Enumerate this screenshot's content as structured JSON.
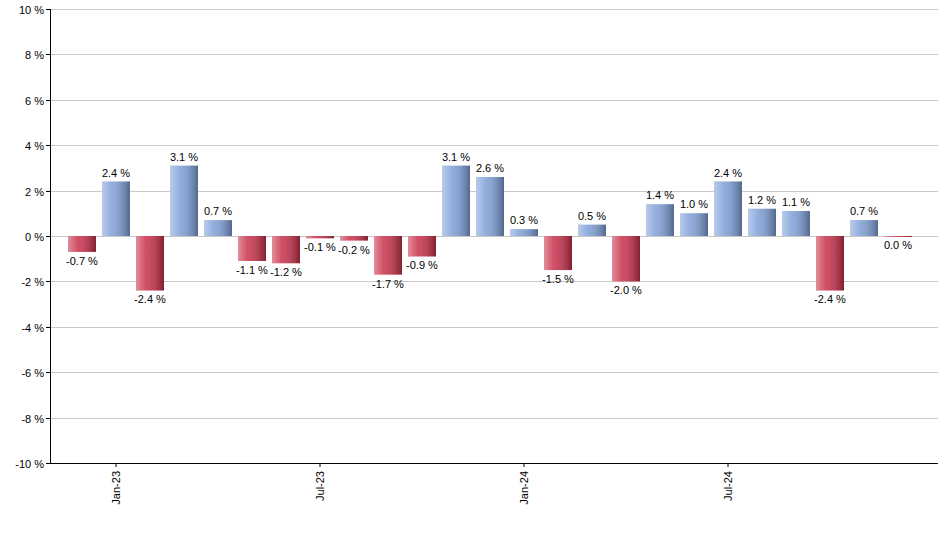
{
  "chart_data": {
    "type": "bar",
    "categories": [
      null,
      "Jan-23",
      null,
      null,
      null,
      null,
      null,
      "Jul-23",
      null,
      null,
      null,
      null,
      null,
      "Jan-24",
      null,
      null,
      null,
      null,
      null,
      "Jul-24",
      null,
      null,
      null,
      null,
      null
    ],
    "values": [
      -0.7,
      2.4,
      -2.4,
      3.1,
      0.7,
      -1.1,
      -1.2,
      -0.1,
      -0.2,
      -1.7,
      -0.9,
      3.1,
      2.6,
      0.3,
      -1.5,
      0.5,
      -2.0,
      1.4,
      1.0,
      2.4,
      1.2,
      1.1,
      -2.4,
      0.7,
      0.0
    ],
    "value_labels": [
      "-0.7 %",
      "2.4 %",
      "-2.4 %",
      "3.1 %",
      "0.7 %",
      "-1.1 %",
      "-1.2 %",
      "-0.1 %",
      "-0.2 %",
      "-1.7 %",
      "-0.9 %",
      "3.1 %",
      "2.6 %",
      "0.3 %",
      "-1.5 %",
      "0.5 %",
      "-2.0 %",
      "1.4 %",
      "1.0 %",
      "2.4 %",
      "1.2 %",
      "1.1 %",
      "-2.4 %",
      "0.7 %",
      "0.0 %"
    ],
    "colors": [
      "#c8304a",
      "#7f9fd8",
      "#c8304a",
      "#7f9fd8",
      "#7f9fd8",
      "#c8304a",
      "#c8304a",
      "#c8304a",
      "#c8304a",
      "#c8304a",
      "#c8304a",
      "#7f9fd8",
      "#7f9fd8",
      "#7f9fd8",
      "#c8304a",
      "#7f9fd8",
      "#c8304a",
      "#7f9fd8",
      "#7f9fd8",
      "#7f9fd8",
      "#7f9fd8",
      "#7f9fd8",
      "#c8304a",
      "#7f9fd8",
      "#c8304a"
    ],
    "ylim": [
      -10,
      10
    ],
    "yticks": [
      {
        "value": -10,
        "label": "-10 %"
      },
      {
        "value": -8,
        "label": "-8 %"
      },
      {
        "value": -6,
        "label": "-6 %"
      },
      {
        "value": -4,
        "label": "-4 %"
      },
      {
        "value": -2,
        "label": "-2 %"
      },
      {
        "value": 0,
        "label": "0 %"
      },
      {
        "value": 2,
        "label": "2 %"
      },
      {
        "value": 4,
        "label": "4 %"
      },
      {
        "value": 6,
        "label": "6 %"
      },
      {
        "value": 8,
        "label": "8 %"
      },
      {
        "value": 10,
        "label": "10 %"
      }
    ],
    "grid": true,
    "data_labels": true
  }
}
